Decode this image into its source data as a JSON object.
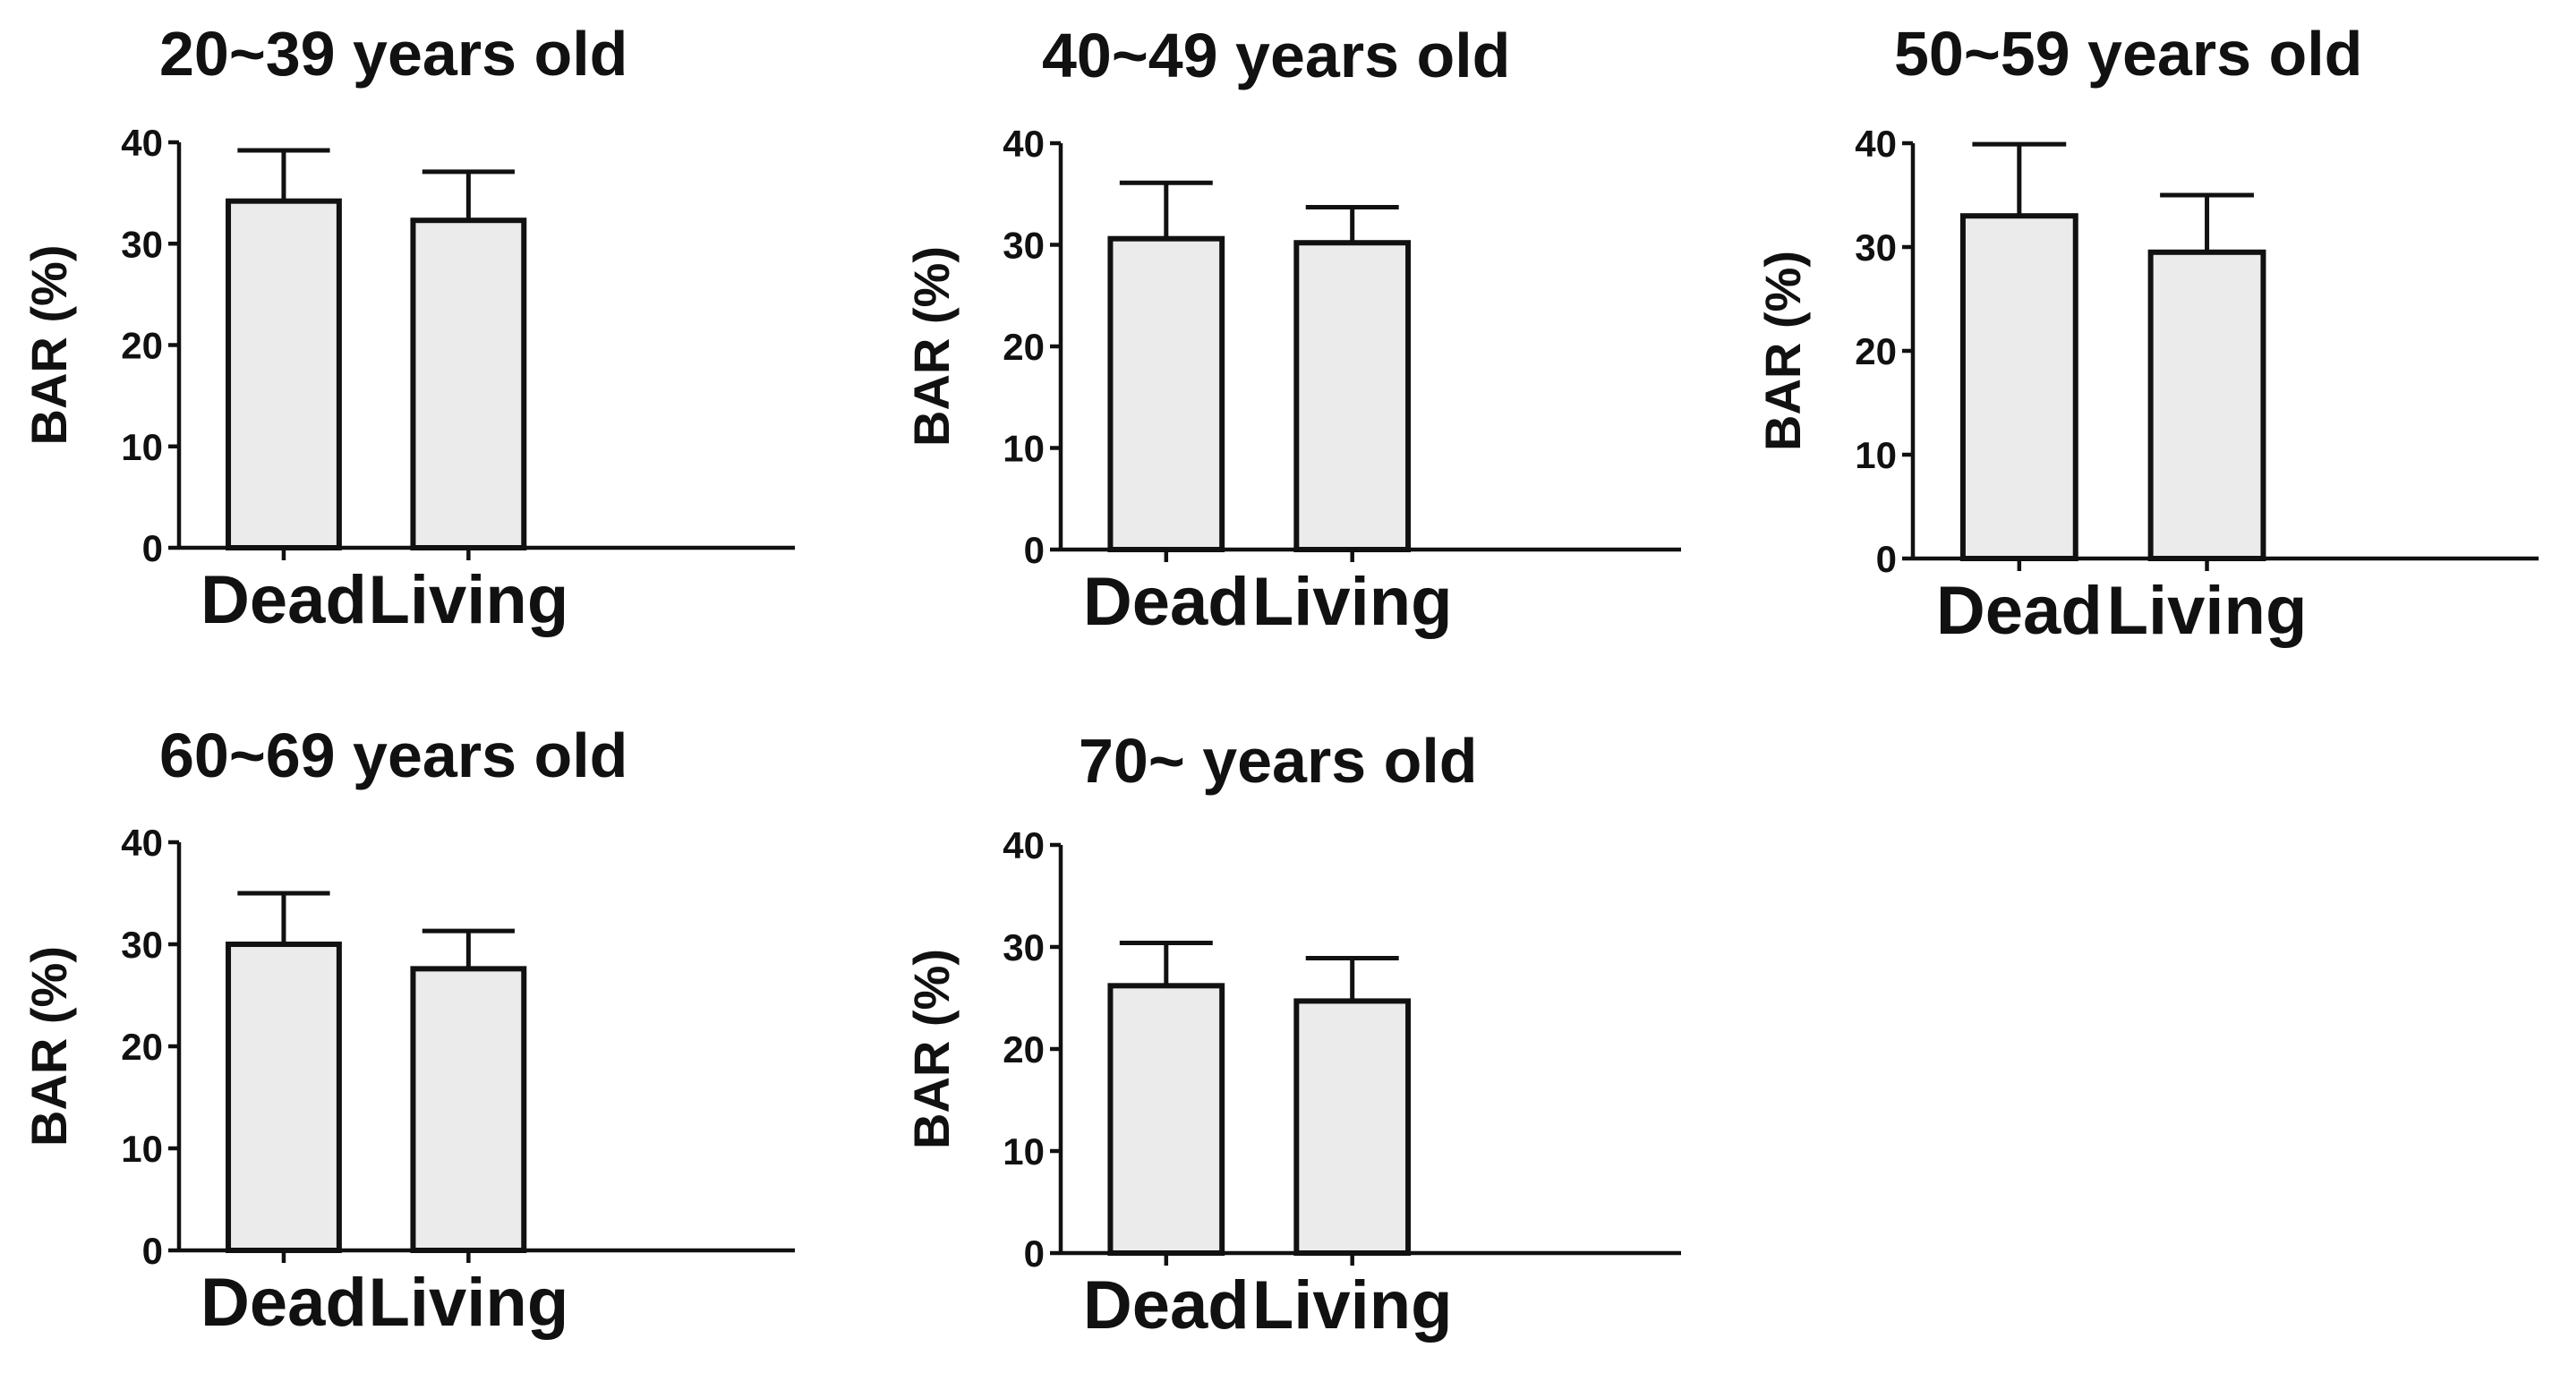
{
  "figure": {
    "bar_fill": "#ebebeb",
    "ink_color": "#111111"
  },
  "chart_data": [
    {
      "type": "bar",
      "title": "20~39 years old",
      "categories": [
        "Dead",
        "Living"
      ],
      "values": [
        34.2,
        32.3
      ],
      "errors": [
        5.0,
        4.8
      ],
      "xlabel": "",
      "ylabel": "BAR (%)",
      "ylim": [
        0,
        40
      ],
      "yticks": [
        0,
        10,
        20,
        30,
        40
      ],
      "legend": "none"
    },
    {
      "type": "bar",
      "title": "40~49 years old",
      "categories": [
        "Dead",
        "Living"
      ],
      "values": [
        30.6,
        30.2
      ],
      "errors": [
        5.5,
        3.5
      ],
      "xlabel": "",
      "ylabel": "BAR (%)",
      "ylim": [
        0,
        40
      ],
      "yticks": [
        0,
        10,
        20,
        30,
        40
      ],
      "legend": "none"
    },
    {
      "type": "bar",
      "title": "50~59 years old",
      "categories": [
        "Dead",
        "Living"
      ],
      "values": [
        33.0,
        29.5
      ],
      "errors": [
        6.9,
        5.5
      ],
      "xlabel": "",
      "ylabel": "BAR (%)",
      "ylim": [
        0,
        40
      ],
      "yticks": [
        0,
        10,
        20,
        30,
        40
      ],
      "legend": "none"
    },
    {
      "type": "bar",
      "title": "60~69 years old",
      "categories": [
        "Dead",
        "Living"
      ],
      "values": [
        30.0,
        27.6
      ],
      "errors": [
        5.0,
        3.7
      ],
      "xlabel": "",
      "ylabel": "BAR (%)",
      "ylim": [
        0,
        40
      ],
      "yticks": [
        0,
        10,
        20,
        30,
        40
      ],
      "legend": "none"
    },
    {
      "type": "bar",
      "title": "70~ years old",
      "categories": [
        "Dead",
        "Living"
      ],
      "values": [
        26.2,
        24.7
      ],
      "errors": [
        4.2,
        4.2
      ],
      "xlabel": "",
      "ylabel": "BAR (%)",
      "ylim": [
        0,
        40
      ],
      "yticks": [
        0,
        10,
        20,
        30,
        40
      ],
      "legend": "none"
    }
  ]
}
